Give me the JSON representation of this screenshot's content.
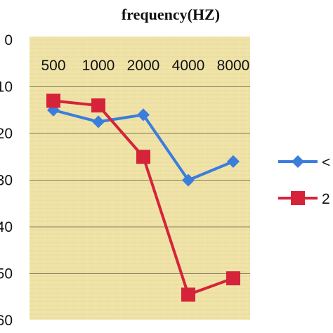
{
  "chart_data": {
    "type": "line",
    "title": "frequency(HZ)",
    "categories": [
      "500",
      "1000",
      "2000",
      "4000",
      "8000"
    ],
    "y_tick_labels": [
      "0",
      "10",
      "20",
      "30",
      "40",
      "50",
      "60"
    ],
    "ylim": [
      0,
      60
    ],
    "y_inverted": true,
    "x_axis_position": "top",
    "grid": true,
    "legend_position": "right (cropped)",
    "plot_background": "#efe3a8",
    "series": [
      {
        "legend_label": "<",
        "color": "#3b7ddd",
        "marker": "diamond",
        "values": [
          15,
          17.5,
          16,
          30,
          26
        ]
      },
      {
        "legend_label": "2",
        "color": "#d5243a",
        "marker": "square",
        "values": [
          13,
          14,
          25,
          54.5,
          51
        ]
      }
    ]
  }
}
